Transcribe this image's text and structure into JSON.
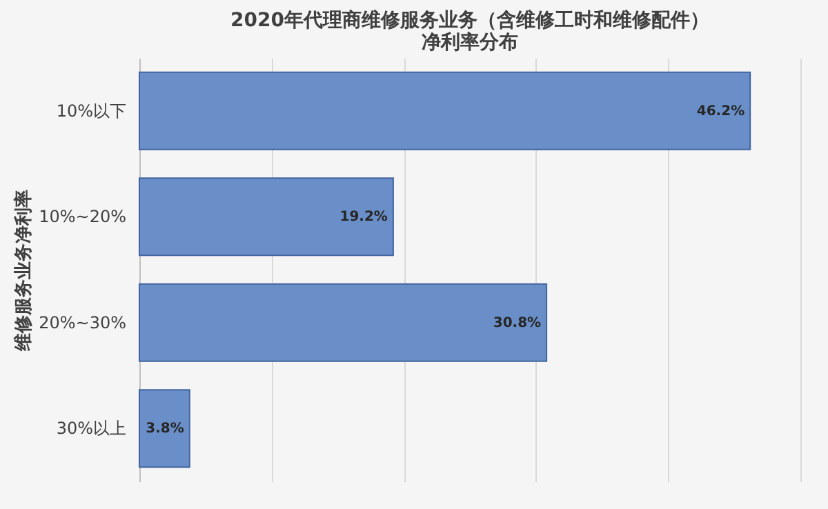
{
  "chart_data": {
    "type": "bar",
    "orientation": "horizontal",
    "title": [
      "2020年代理商维修服务业务（含维修工时和维修配件）",
      "净利率分布"
    ],
    "ylabel": "维修服务业务净利率",
    "categories": [
      "10%以下",
      "10%~20%",
      "20%~30%",
      "30%以上"
    ],
    "values": [
      46.2,
      19.2,
      30.8,
      3.8
    ],
    "value_labels": [
      "46.2%",
      "19.2%",
      "30.8%",
      "3.8%"
    ],
    "color": "#6a8fc8",
    "xlim": [
      0,
      50
    ],
    "xticks": [
      {
        "value": 0,
        "label": null
      },
      {
        "value": 10,
        "label": null
      },
      {
        "value": 20,
        "label": null
      },
      {
        "value": 30,
        "label": null
      },
      {
        "value": 40,
        "label": null
      },
      {
        "value": 50,
        "label": null
      }
    ],
    "tick_labels": "y",
    "grid": "x"
  }
}
